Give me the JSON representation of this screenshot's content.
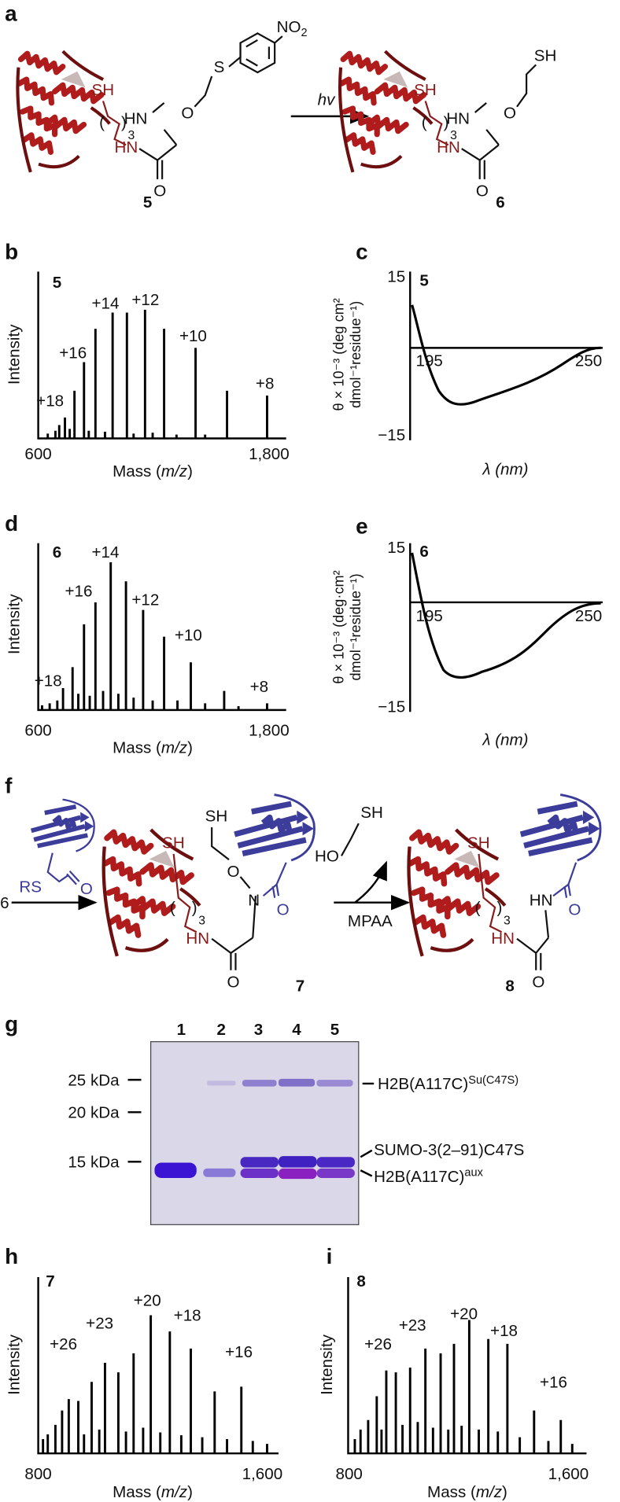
{
  "panels": {
    "a": {
      "label": "a",
      "compound_5": {
        "number": "5",
        "atoms": [
          "SH",
          "3",
          "HN",
          "HN",
          "O",
          "O",
          "S",
          "NO",
          "2"
        ]
      },
      "arrow": "hv",
      "compound_6": {
        "number": "6",
        "atoms": [
          "SH",
          "3",
          "HN",
          "HN",
          "O",
          "O",
          "SH"
        ]
      }
    },
    "b": {
      "label": "b",
      "sample": "5",
      "y_label": "Intensity",
      "x_label": {
        "prefix": "Mass (",
        "italic": "m/z",
        "suffix": ")"
      },
      "x_ticks": [
        "600",
        "1,800"
      ],
      "peak_labels": [
        "+18",
        "+16",
        "+14",
        "+12",
        "+10",
        "+8"
      ]
    },
    "c": {
      "label": "c",
      "sample": "5",
      "y_label": [
        "θ × 10⁻³ (deg cm²",
        "dmol⁻¹residue⁻¹)"
      ],
      "y_ticks": [
        "15",
        "−15"
      ],
      "x_ticks": [
        "195",
        "250"
      ],
      "x_label": "λ (nm)"
    },
    "d": {
      "label": "d",
      "sample": "6",
      "y_label": "Intensity",
      "x_label": {
        "prefix": "Mass (",
        "italic": "m/z",
        "suffix": ")"
      },
      "x_ticks": [
        "600",
        "1,800"
      ],
      "peak_labels": [
        "+18",
        "+16",
        "+14",
        "+12",
        "+10",
        "+8"
      ]
    },
    "e": {
      "label": "e",
      "sample": "6",
      "y_label": [
        "θ × 10⁻³ (deg·cm²",
        "dmol⁻¹residue⁻¹)"
      ],
      "y_ticks": [
        "15",
        "−15"
      ],
      "x_ticks": [
        "195",
        "250"
      ],
      "x_label": "λ (nm)"
    },
    "f": {
      "label": "f",
      "reactant": "6",
      "thioester": [
        "RS",
        "O"
      ],
      "compound_7": {
        "number": "7",
        "atoms": [
          "SH",
          "3",
          "HN",
          "SH",
          "O",
          "N",
          "O",
          "O"
        ]
      },
      "reagent": [
        "SH",
        "HO"
      ],
      "arrow": "MPAA",
      "compound_8": {
        "number": "8",
        "atoms": [
          "SH",
          "3",
          "HN",
          "HN",
          "O",
          "O"
        ]
      }
    },
    "g": {
      "label": "g",
      "lanes": [
        "1",
        "2",
        "3",
        "4",
        "5"
      ],
      "markers": [
        "25 kDa",
        "20 kDa",
        "15 kDa"
      ],
      "bands": [
        {
          "text": "H2B(A117C)",
          "sup": "Su(C47S)"
        },
        {
          "text": "SUMO-3(2–91)C47S"
        },
        {
          "text": "H2B(A117C)",
          "sup": "aux"
        }
      ]
    },
    "h": {
      "label": "h",
      "sample": "7",
      "y_label": "Intensity",
      "x_label": {
        "prefix": "Mass (",
        "italic": "m/z",
        "suffix": ")"
      },
      "x_ticks": [
        "800",
        "1,600"
      ],
      "peak_labels": [
        "+26",
        "+23",
        "+20",
        "+18",
        "+16"
      ]
    },
    "i": {
      "label": "i",
      "sample": "8",
      "y_label": "Intensity",
      "x_label": {
        "prefix": "Mass (",
        "italic": "m/z",
        "suffix": ")"
      },
      "x_ticks": [
        "800",
        "1,600"
      ],
      "peak_labels": [
        "+26",
        "+23",
        "+20",
        "+18",
        "+16"
      ]
    }
  }
}
